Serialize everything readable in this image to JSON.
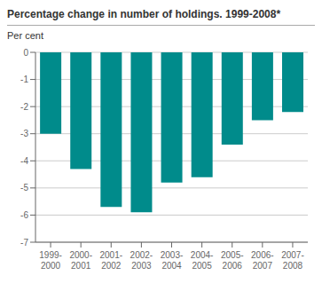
{
  "chart_data": {
    "type": "bar",
    "title": "Percentage change in number of holdings. 1999-2008*",
    "ylabel": "Per cent",
    "categories": [
      "1999-\n2000",
      "2000-\n2001",
      "2001-\n2002",
      "2002-\n2003",
      "2003-\n2004",
      "2004-\n2005",
      "2005-\n2006",
      "2006-\n2007",
      "2007-\n2008"
    ],
    "values": [
      -3.0,
      -4.3,
      -5.7,
      -5.9,
      -4.8,
      -4.6,
      -3.4,
      -2.5,
      -2.2
    ],
    "color": "#008B8B",
    "ylim": [
      -7,
      0
    ],
    "yticks": [
      0,
      -1,
      -2,
      -3,
      -4,
      -5,
      -6,
      -7
    ],
    "grid": true
  }
}
